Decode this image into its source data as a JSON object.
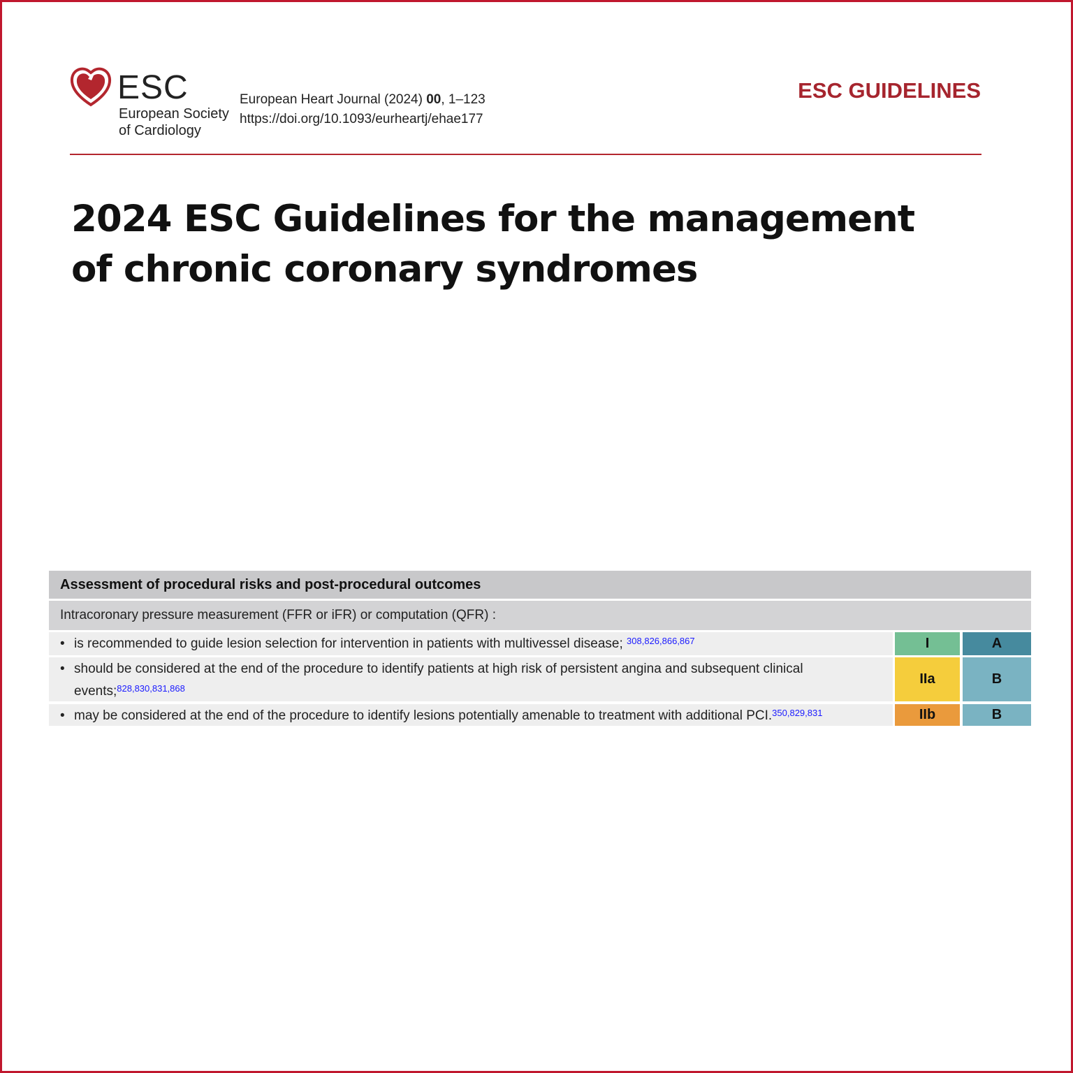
{
  "header": {
    "logo_text": "ESC",
    "society_line1": "European Society",
    "society_line2": "of Cardiology",
    "journal_prefix": "European Heart Journal (2024) ",
    "journal_volume": "00",
    "journal_pages": ", 1–123",
    "doi": "https://doi.org/10.1093/eurheartj/ehae177",
    "section_label": "ESC GUIDELINES"
  },
  "title_line1": "2024 ESC Guidelines for the management",
  "title_line2": "of chronic coronary syndromes",
  "table": {
    "heading": "Assessment of procedural risks and post-procedural outcomes",
    "subheading": "Intracoronary pressure measurement (FFR or iFR) or computation (QFR) :",
    "rows": [
      {
        "text": "is recommended to guide lesion selection for intervention in patients with multivessel disease; ",
        "refs": "308,826,866,867",
        "class": "I",
        "level": "A",
        "class_color": "#74bf94",
        "level_color": "#468a9e"
      },
      {
        "text": "should be considered at the end of the procedure to identify patients at high risk of persistent angina and subsequent clinical events;",
        "refs": "828,830,831,868",
        "class": "IIa",
        "level": "B",
        "class_color": "#f5cd3c",
        "level_color": "#7ab3c2"
      },
      {
        "text": "may be considered at the end of the procedure to identify lesions potentially amenable to treatment with additional PCI.",
        "refs": "350,829,831",
        "class": "IIb",
        "level": "B",
        "class_color": "#ea9a3c",
        "level_color": "#7ab3c2"
      }
    ]
  },
  "colors": {
    "brand": "#a6252e",
    "border": "#c0172e"
  }
}
